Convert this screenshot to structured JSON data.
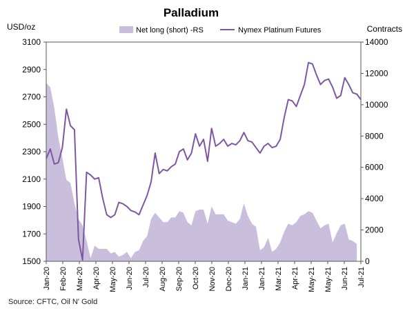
{
  "chart_data": {
    "type": "line+area",
    "title": "Palladium",
    "left_unit": "USD/oz",
    "right_unit": "Contracts",
    "left_ylim": [
      1500,
      3100
    ],
    "left_ticks": [
      "1500",
      "1700",
      "1900",
      "2100",
      "2300",
      "2500",
      "2700",
      "2900",
      "3100"
    ],
    "right_ylim": [
      0,
      14000
    ],
    "right_ticks": [
      "0",
      "2000",
      "4000",
      "6000",
      "8000",
      "10000",
      "12000",
      "14000"
    ],
    "x_ticks": [
      "Jan-20",
      "Feb-20",
      "Mar-20",
      "Apr-20",
      "May-20",
      "Jun-20",
      "Jul-20",
      "Aug-20",
      "Sep-20",
      "Oct-20",
      "Nov-20",
      "Dec-20",
      "Jan-21",
      "Jan-21",
      "Mar-21",
      "Apr-21",
      "May-21",
      "May-21",
      "Jun-21",
      "Jul-21"
    ],
    "x_start": "2020-01-01",
    "x_step_weeks": 1,
    "series": [
      {
        "name": "Net long (short) -RS",
        "axis": "right",
        "kind": "area",
        "color": "#c9bedb",
        "values": [
          11400,
          11100,
          9800,
          7900,
          6600,
          5200,
          5000,
          3700,
          2700,
          2300,
          1300,
          200,
          1000,
          800,
          800,
          800,
          500,
          600,
          300,
          400,
          600,
          200,
          600,
          700,
          1300,
          1600,
          2700,
          3100,
          2800,
          2500,
          2500,
          2800,
          2800,
          3200,
          3100,
          2500,
          2300,
          3200,
          3300,
          3300,
          2400,
          3500,
          3000,
          3000,
          3000,
          2600,
          2500,
          2400,
          2700,
          3700,
          2900,
          2400,
          2200,
          700,
          900,
          1500,
          600,
          800,
          1200,
          1900,
          2400,
          2300,
          2500,
          2900,
          3000,
          3200,
          3100,
          2600,
          2100,
          2300,
          2400,
          1200,
          1800,
          2300,
          2400,
          1400,
          1300,
          1100
        ]
      },
      {
        "name": "Nymex Platinum Futures",
        "axis": "left",
        "kind": "line",
        "color": "#7b57a2",
        "values": [
          2250,
          2320,
          2210,
          2220,
          2330,
          2610,
          2490,
          2460,
          1660,
          1510,
          2150,
          2130,
          2100,
          2110,
          1960,
          1840,
          1820,
          1840,
          1930,
          1920,
          1900,
          1870,
          1860,
          1840,
          1910,
          1980,
          2080,
          2290,
          2140,
          2170,
          2160,
          2190,
          2210,
          2300,
          2320,
          2240,
          2290,
          2430,
          2340,
          2390,
          2230,
          2470,
          2340,
          2360,
          2390,
          2340,
          2360,
          2350,
          2380,
          2440,
          2380,
          2370,
          2330,
          2290,
          2340,
          2360,
          2330,
          2340,
          2390,
          2550,
          2680,
          2670,
          2630,
          2710,
          2790,
          2950,
          2940,
          2860,
          2790,
          2820,
          2830,
          2770,
          2690,
          2710,
          2840,
          2790,
          2730,
          2720,
          2680
        ]
      }
    ],
    "legend_position": "top"
  },
  "source": "Source: CFTC, Oil N' Gold"
}
